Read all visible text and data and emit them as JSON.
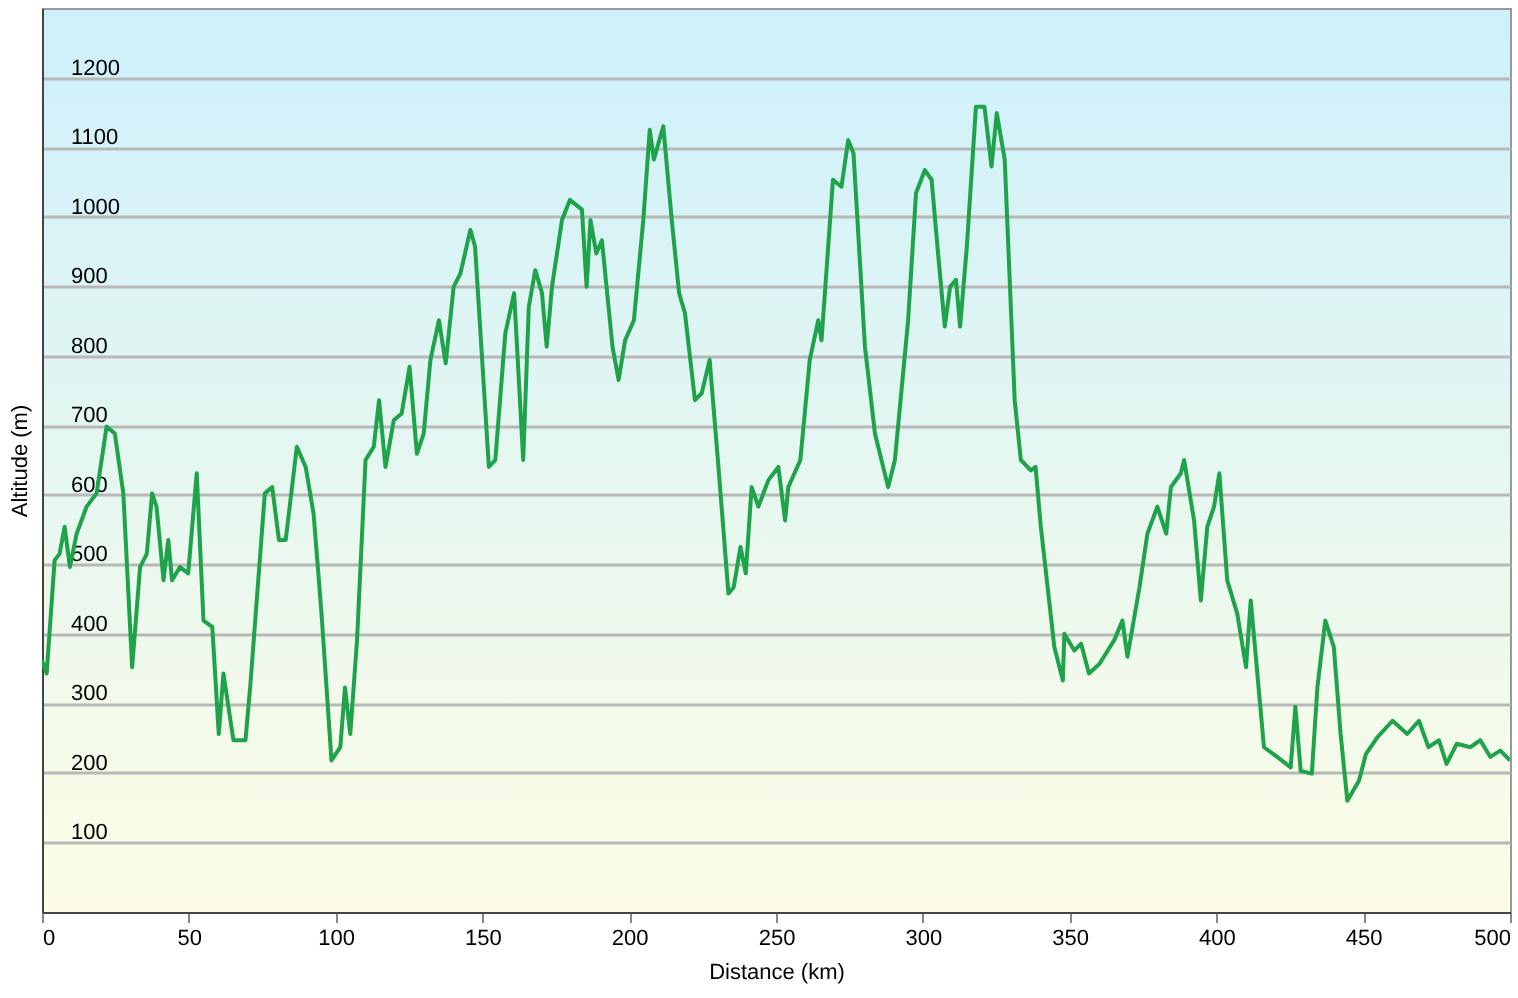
{
  "chart_data": {
    "type": "line",
    "xlabel": "Distance  (km)",
    "ylabel": "Altitude (m)",
    "xlim": [
      0,
      500
    ],
    "xticks": [
      0,
      50,
      100,
      150,
      200,
      250,
      300,
      350,
      400,
      450,
      500
    ],
    "ylim": [
      0,
      1300
    ],
    "yticks": [
      100,
      200,
      300,
      400,
      500,
      600,
      700,
      800,
      900,
      1000,
      1100,
      1200
    ],
    "grid": "y",
    "series": [
      {
        "color": "#1fa34a",
        "x": [
          0,
          1.6,
          4.3,
          6,
          7.7,
          9.5,
          11.8,
          15.2,
          18.6,
          22,
          24.8,
          27.7,
          30.7,
          33.4,
          35.7,
          37.5,
          39,
          41.4,
          43,
          44.3,
          47,
          49.8,
          52.7,
          55,
          58,
          60.2,
          61.8,
          65.2,
          69.3,
          70.9,
          75.9,
          78.4,
          80.7,
          83,
          86.8,
          89.8,
          92.5,
          95.2,
          98.6,
          101.6,
          103.2,
          105,
          107.3,
          110.2,
          113,
          114.8,
          117,
          119.8,
          122.5,
          125.2,
          127.7,
          130,
          132.3,
          135.2,
          137.5,
          140.2,
          142.5,
          145.9,
          147.5,
          152.2,
          154.4,
          157.8,
          160.8,
          163.9,
          165.8,
          168,
          170.3,
          171.9,
          173.7,
          177.1,
          179.8,
          183.9,
          185.5,
          186.8,
          188.8,
          190.7,
          192.5,
          194.3,
          196.4,
          198.6,
          201.6,
          204.8,
          207,
          208.4,
          211.6,
          214.5,
          217,
          219,
          222.4,
          224.7,
          227.4,
          230.4,
          233.8,
          235.6,
          237.9,
          239.7,
          241.7,
          244,
          247.4,
          250.8,
          253.1,
          254.2,
          258.3,
          261.5,
          264.4,
          265.5,
          269.4,
          272.3,
          274.6,
          276.4,
          280.3,
          283.7,
          288.2,
          290.5,
          295,
          297.7,
          300.7,
          303,
          305.2,
          307.5,
          309.3,
          311.3,
          312.7,
          315,
          318.1,
          321,
          323.4,
          325.2,
          327.9,
          331.3,
          333.4,
          336.8,
          338.4,
          340.2,
          344.8,
          347.7,
          348.2,
          351.6,
          353.9,
          356.6,
          360.2,
          365.2,
          368,
          369.7,
          373.8,
          376.5,
          379.9,
          382.9,
          384.5,
          387.9,
          389,
          392.4,
          394.7,
          396.9,
          399.2,
          401,
          403.7,
          407.1,
          410.1,
          411.7,
          416.2,
          420.7,
          425.3,
          426.9,
          428.7,
          432.5,
          434.4,
          437.1,
          440,
          442.3,
          444.6,
          448.6,
          450.9,
          454.8,
          460,
          465,
          469,
          472.2,
          475.8,
          478.4,
          481.9,
          486.5,
          489.9,
          493.3,
          496.7,
          500
        ],
        "values": [
          362,
          343,
          506,
          515,
          554,
          496,
          544,
          583,
          602,
          698,
          688,
          602,
          352,
          496,
          515,
          602,
          583,
          477,
          535,
          477,
          496,
          487,
          631,
          419,
          410,
          256,
          343,
          247,
          247,
          323,
          602,
          611,
          535,
          535,
          669,
          640,
          573,
          429,
          218,
          237,
          323,
          256,
          391,
          650,
          669,
          736,
          640,
          707,
          717,
          784,
          659,
          688,
          794,
          851,
          789,
          899,
          918,
          981,
          957,
          640,
          650,
          832,
          890,
          650,
          870,
          923,
          890,
          813,
          899,
          995,
          1024,
          1010,
          899,
          995,
          947,
          966,
          890,
          813,
          765,
          822,
          851,
          995,
          1125,
          1082,
          1130,
          995,
          890,
          861,
          736,
          746,
          794,
          640,
          458,
          467,
          525,
          487,
          611,
          583,
          621,
          640,
          563,
          611,
          650,
          794,
          851,
          822,
          1053,
          1043,
          1110,
          1091,
          813,
          688,
          611,
          650,
          851,
          1034,
          1067,
          1053,
          947,
          842,
          899,
          909,
          842,
          957,
          1158,
          1158,
          1072,
          1149,
          1082,
          736,
          650,
          635,
          640,
          554,
          381,
          333,
          400,
          376,
          386,
          343,
          357,
          391,
          419,
          367,
          467,
          544,
          583,
          544,
          611,
          631,
          650,
          563,
          448,
          554,
          583,
          631,
          477,
          429,
          352,
          448,
          237,
          223,
          208,
          295,
          203,
          199,
          323,
          419,
          381,
          256,
          160,
          189,
          227,
          251,
          275,
          256,
          275,
          237,
          247,
          213,
          242,
          237,
          247,
          223,
          232,
          218
        ]
      }
    ]
  }
}
